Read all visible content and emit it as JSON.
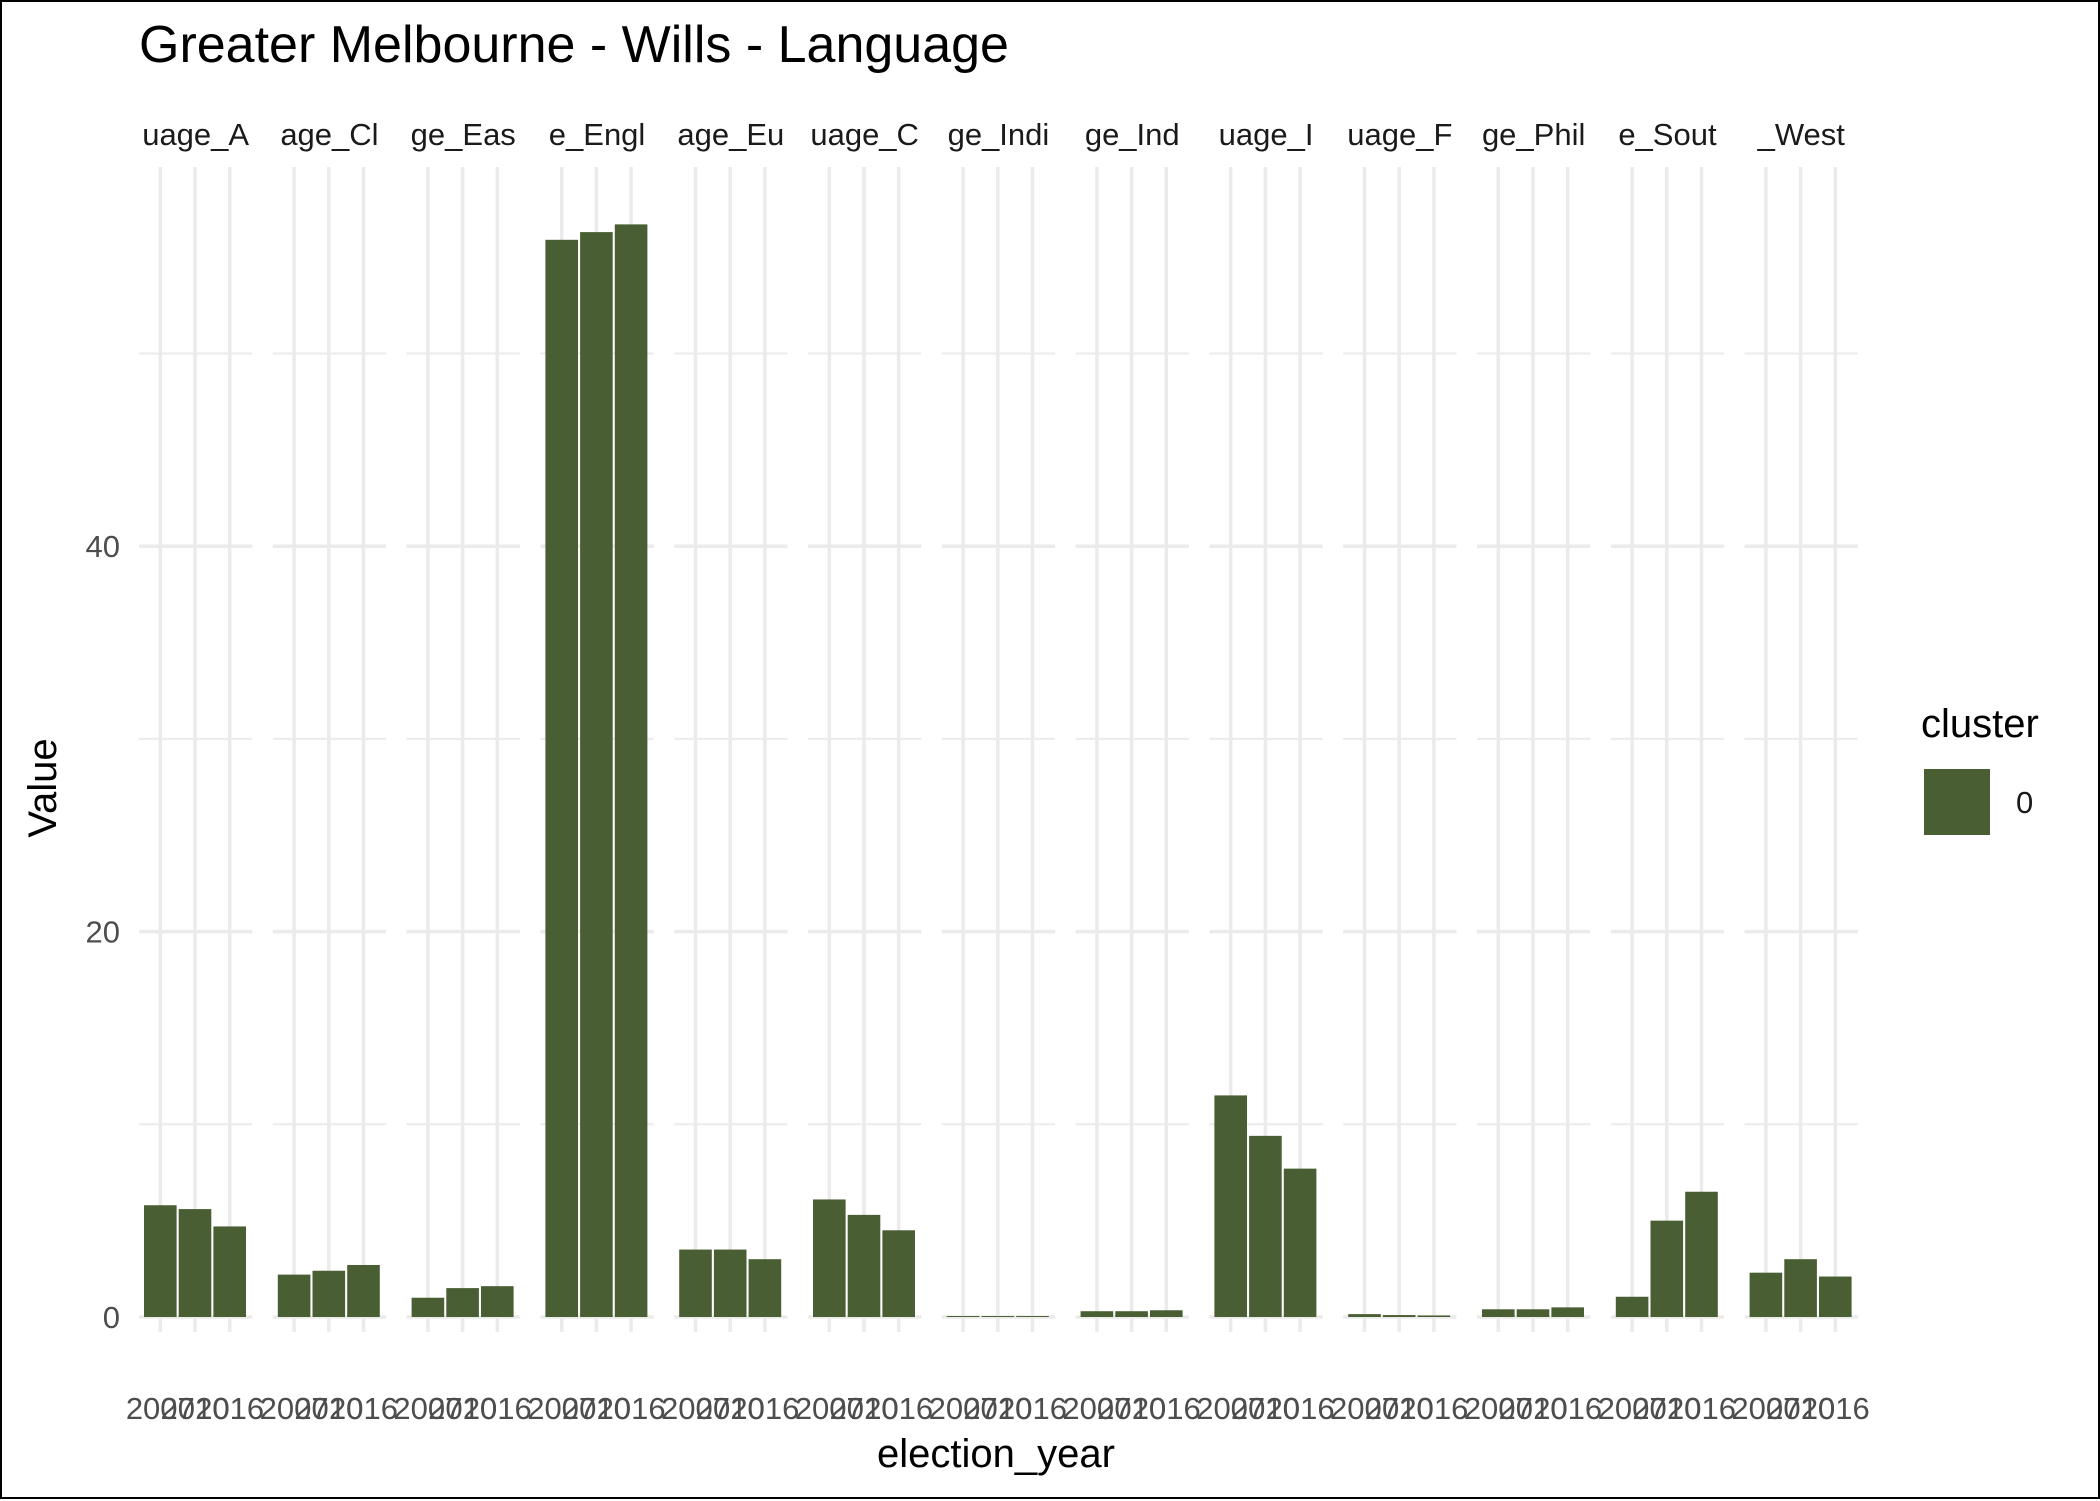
{
  "chart_data": {
    "type": "bar",
    "title": "Greater Melbourne - Wills - Language",
    "xlabel": "election_year",
    "ylabel": "Value",
    "x": [
      "2007",
      "2010",
      "2016"
    ],
    "ylim": [
      0,
      59.6
    ],
    "y_ticks": [
      0,
      20,
      40
    ],
    "grid": true,
    "legend": {
      "title": "cluster",
      "entries": [
        "0"
      ],
      "placement": "right"
    },
    "bar_color": "#4a5e33",
    "facets": [
      {
        "label": "uage_A",
        "values": [
          5.8,
          5.6,
          4.7
        ]
      },
      {
        "label": "age_Cl",
        "values": [
          2.2,
          2.4,
          2.7
        ]
      },
      {
        "label": "ge_Eas",
        "values": [
          1.0,
          1.5,
          1.6
        ]
      },
      {
        "label": "e_Engl",
        "values": [
          55.9,
          56.3,
          56.7
        ]
      },
      {
        "label": "age_Eu",
        "values": [
          3.5,
          3.5,
          3.0
        ]
      },
      {
        "label": "uage_C",
        "values": [
          6.1,
          5.3,
          4.5
        ]
      },
      {
        "label": "ge_Indi",
        "values": [
          0.05,
          0.05,
          0.05
        ]
      },
      {
        "label": "ge_Ind",
        "values": [
          0.3,
          0.3,
          0.35
        ]
      },
      {
        "label": "uage_I",
        "values": [
          11.5,
          9.4,
          7.7
        ]
      },
      {
        "label": "uage_F",
        "values": [
          0.15,
          0.1,
          0.08
        ]
      },
      {
        "label": "ge_Phil",
        "values": [
          0.4,
          0.4,
          0.5
        ]
      },
      {
        "label": "e_Sout",
        "values": [
          1.05,
          5.0,
          6.5
        ]
      },
      {
        "label": "_West",
        "values": [
          2.3,
          3.0,
          2.1
        ]
      }
    ]
  }
}
